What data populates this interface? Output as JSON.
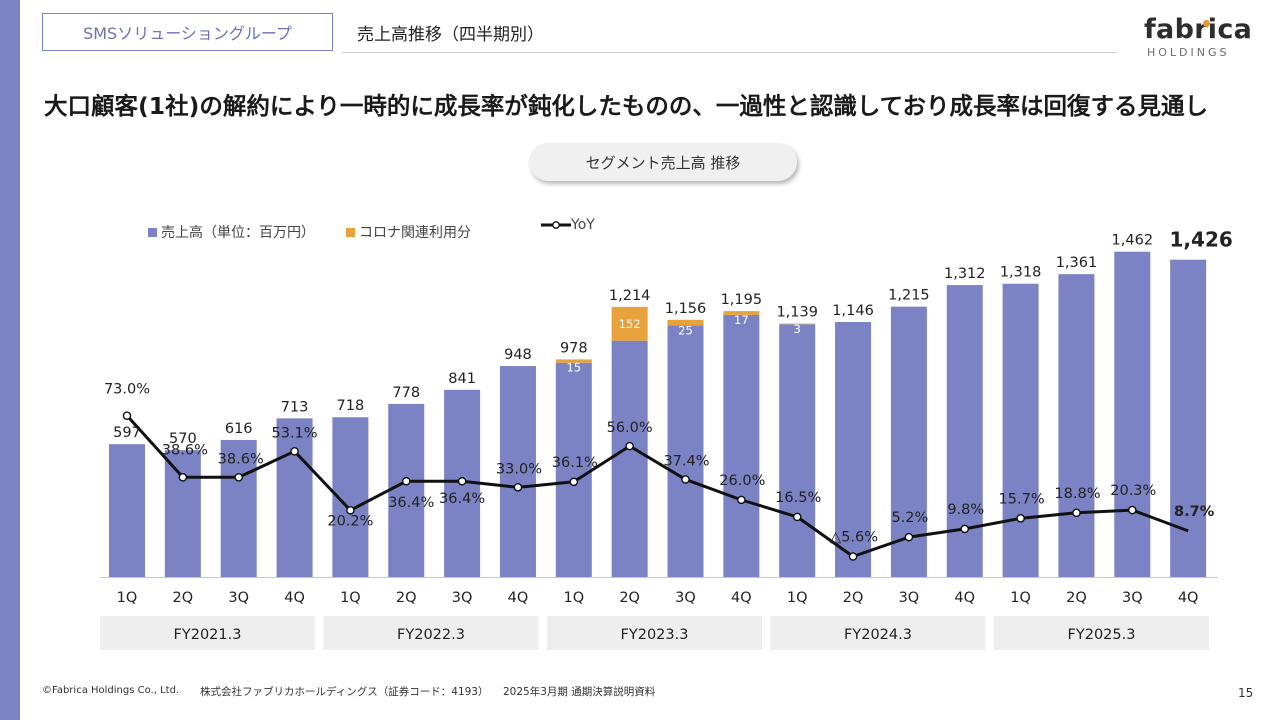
{
  "header": {
    "segment_label": "SMSソリューショングループ",
    "subtitle": "売上高推移（四半期別）",
    "logo_main": "fabrica",
    "logo_sub": "HOLDINGS"
  },
  "headline": "大口顧客(1社)の解約により一時的に成長率が鈍化したものの、一過性と認識しており成長率は回復する見通し",
  "chart_title_pill": "セグメント売上高 推移",
  "legend": {
    "sales": "売上高（単位：百万円）",
    "corona": "コロナ関連利用分",
    "yoy": "YoY"
  },
  "colors": {
    "sales": "#7b83c4",
    "corona": "#e8a23c",
    "yoy": "#111111",
    "band": "#eeeeee",
    "accent": "#7b83c4"
  },
  "chart_data": {
    "type": "bar",
    "categories": [
      "1Q",
      "2Q",
      "3Q",
      "4Q",
      "1Q",
      "2Q",
      "3Q",
      "4Q",
      "1Q",
      "2Q",
      "3Q",
      "4Q",
      "1Q",
      "2Q",
      "3Q",
      "4Q",
      "1Q",
      "2Q",
      "3Q",
      "4Q"
    ],
    "groups": [
      "FY2021.3",
      "FY2022.3",
      "FY2023.3",
      "FY2024.3",
      "FY2025.3"
    ],
    "series": [
      {
        "name": "売上高（単位：百万円）",
        "type": "bar",
        "values": [
          597,
          570,
          616,
          713,
          718,
          778,
          841,
          948,
          978,
          1214,
          1156,
          1195,
          1139,
          1146,
          1215,
          1312,
          1318,
          1361,
          1462,
          1426
        ],
        "labels": [
          "597",
          "570",
          "616",
          "713",
          "718",
          "778",
          "841",
          "948",
          "978",
          "1,214",
          "1,156",
          "1,195",
          "1,139",
          "1,146",
          "1,215",
          "1,312",
          "1,318",
          "1,361",
          "1,462",
          "1,426"
        ]
      },
      {
        "name": "コロナ関連利用分",
        "type": "bar-stack",
        "values": [
          0,
          0,
          0,
          0,
          0,
          0,
          0,
          0,
          15,
          152,
          25,
          17,
          3,
          0,
          0,
          0,
          0,
          0,
          0,
          0
        ],
        "labels": [
          "",
          "",
          "",
          "",
          "",
          "",
          "",
          "",
          "15",
          "152",
          "25",
          "17",
          "3",
          "",
          "",
          "",
          "",
          "",
          "",
          ""
        ]
      },
      {
        "name": "YoY",
        "type": "line",
        "values": [
          73.0,
          38.6,
          38.6,
          53.1,
          20.2,
          36.4,
          36.4,
          33.0,
          36.1,
          56.0,
          37.4,
          26.0,
          16.5,
          -5.6,
          5.2,
          9.8,
          15.7,
          18.8,
          20.3,
          8.7
        ],
        "labels": [
          "73.0%",
          "38.6%",
          "38.6%",
          "53.1%",
          "20.2%",
          "36.4%",
          "36.4%",
          "33.0%",
          "36.1%",
          "56.0%",
          "37.4%",
          "26.0%",
          "16.5%",
          "△5.6%",
          "5.2%",
          "9.8%",
          "15.7%",
          "18.8%",
          "20.3%",
          "8.7%"
        ]
      }
    ],
    "highlight_last": true
  },
  "footer": {
    "copyright": "©Fabrica Holdings Co., Ltd.",
    "company": "株式会社ファブリカホールディングス（証券コード：4193）",
    "doc": "2025年3月期 通期決算説明資料",
    "page": "15"
  }
}
